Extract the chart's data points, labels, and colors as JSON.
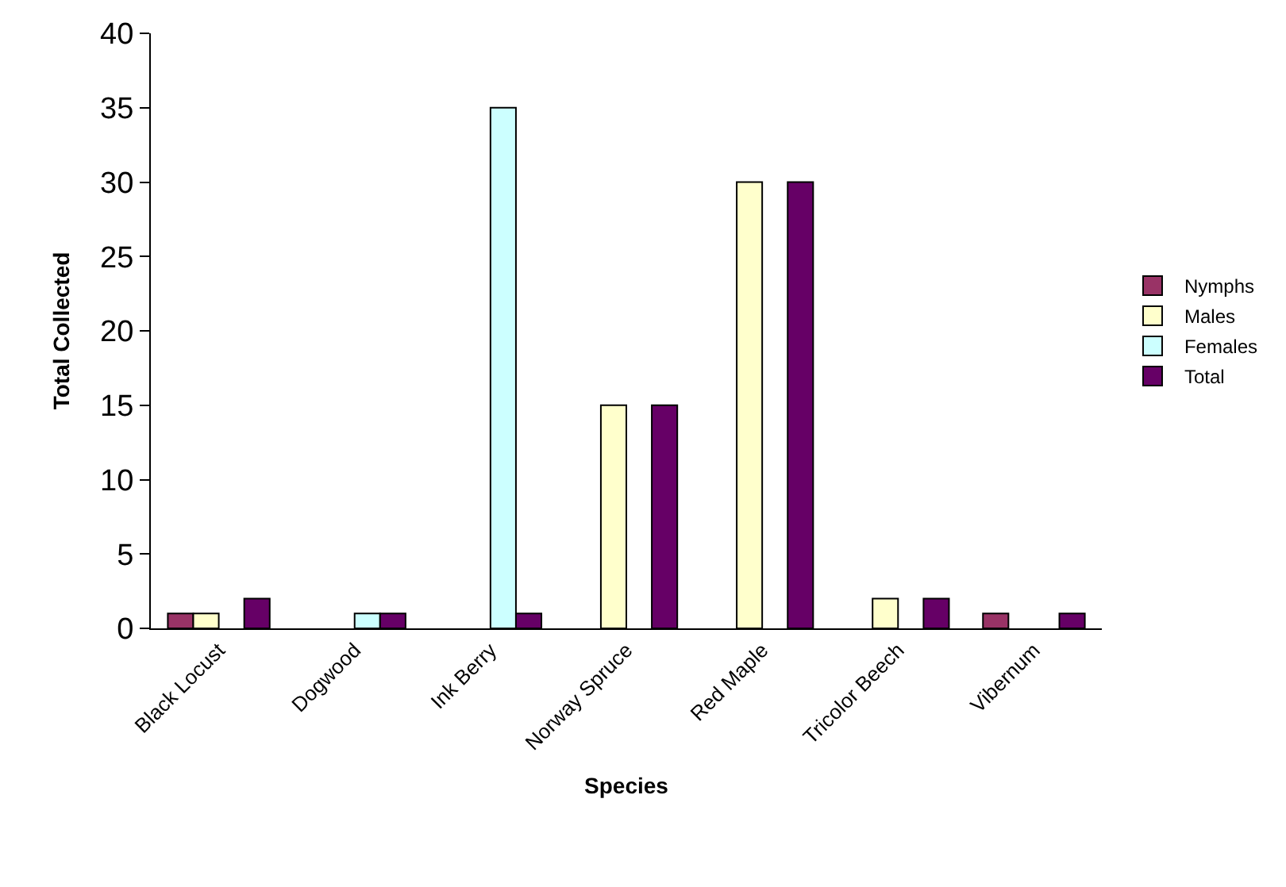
{
  "chart_data": {
    "type": "bar",
    "xlabel": "Species",
    "ylabel": "Total Collected",
    "categories": [
      "Black Locust",
      "Dogwood",
      "Ink Berry",
      "Norway Spruce",
      "Red Maple",
      "Tricolor Beech",
      "Vibernum"
    ],
    "series": [
      {
        "name": "Nymphs",
        "color": "#993366",
        "values": [
          1,
          null,
          null,
          null,
          null,
          null,
          1
        ]
      },
      {
        "name": "Males",
        "color": "#ffffcc",
        "values": [
          1,
          null,
          null,
          15,
          30,
          2,
          null
        ]
      },
      {
        "name": "Females",
        "color": "#ccffff",
        "values": [
          null,
          1,
          35,
          null,
          null,
          null,
          null
        ]
      },
      {
        "name": "Total",
        "color": "#660066",
        "values": [
          2,
          1,
          1,
          15,
          30,
          2,
          1
        ]
      }
    ],
    "ylim": [
      0,
      40
    ],
    "yticks": [
      0,
      5,
      10,
      15,
      20,
      25,
      30,
      35,
      40
    ],
    "grid": false,
    "legend": "right"
  }
}
